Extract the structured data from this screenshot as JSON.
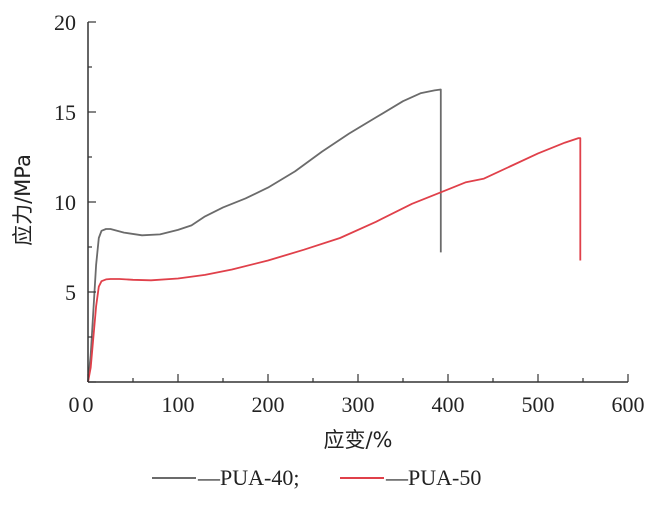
{
  "chart_data": {
    "type": "line",
    "title": "",
    "xlabel": "应变/%",
    "ylabel": "应力/MPa",
    "xlim": [
      0,
      600
    ],
    "ylim": [
      0,
      20
    ],
    "xticks": [
      0,
      100,
      200,
      300,
      400,
      500,
      600
    ],
    "yticks": [
      5,
      10,
      15,
      20
    ],
    "grid": false,
    "legend_placement": "bottom",
    "legend_separator": ";",
    "series": [
      {
        "name": "—PUA-40",
        "color": "#6b6b6b",
        "x": [
          0,
          3,
          6,
          9,
          12,
          15,
          20,
          25,
          40,
          60,
          80,
          100,
          115,
          130,
          150,
          175,
          200,
          230,
          260,
          290,
          320,
          350,
          370,
          385,
          392,
          392
        ],
        "y": [
          0,
          1.5,
          4.0,
          6.5,
          8.0,
          8.4,
          8.5,
          8.5,
          8.3,
          8.15,
          8.2,
          8.45,
          8.7,
          9.2,
          9.7,
          10.2,
          10.8,
          11.7,
          12.8,
          13.8,
          14.7,
          15.6,
          16.05,
          16.2,
          16.25,
          7.2
        ]
      },
      {
        "name": "—PUA-50",
        "color": "#e0404a",
        "x": [
          0,
          3,
          6,
          9,
          12,
          15,
          20,
          25,
          35,
          50,
          70,
          100,
          130,
          160,
          200,
          240,
          280,
          320,
          360,
          400,
          420,
          440,
          470,
          500,
          530,
          545,
          547,
          547
        ],
        "y": [
          0,
          0.8,
          2.5,
          4.2,
          5.3,
          5.6,
          5.7,
          5.72,
          5.72,
          5.68,
          5.65,
          5.75,
          5.95,
          6.25,
          6.75,
          7.35,
          8.0,
          8.9,
          9.9,
          10.7,
          11.1,
          11.3,
          12.0,
          12.7,
          13.3,
          13.55,
          13.55,
          6.75
        ]
      }
    ]
  }
}
